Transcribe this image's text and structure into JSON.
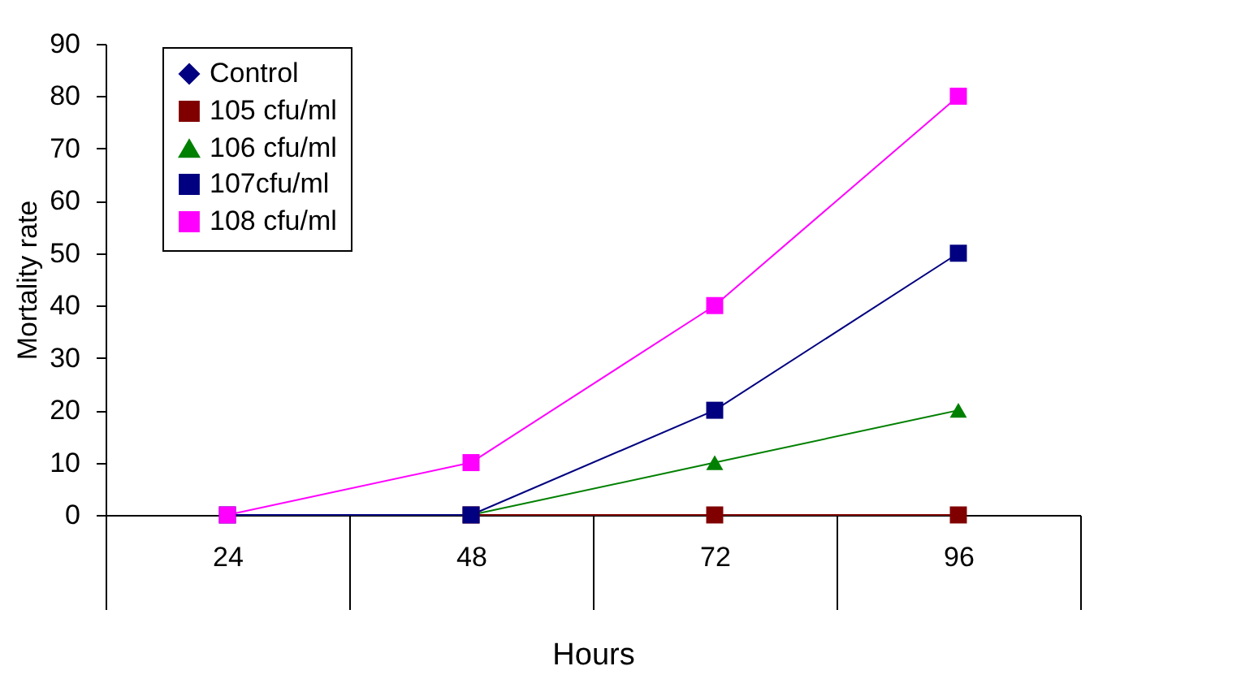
{
  "chart_data": {
    "type": "line",
    "xlabel": "Hours",
    "ylabel": "Mortality rate",
    "categories": [
      "24",
      "48",
      "72",
      "96"
    ],
    "series": [
      {
        "name": "Control",
        "color": "#000080",
        "marker": "diamond",
        "values": [
          null,
          null,
          null,
          null
        ]
      },
      {
        "name": "105 cfu/ml",
        "color": "#800000",
        "marker": "square",
        "values": [
          null,
          0,
          0,
          0
        ]
      },
      {
        "name": "106 cfu/ml",
        "color": "#008000",
        "marker": "triangle",
        "values": [
          0,
          0,
          10,
          20
        ]
      },
      {
        "name": "107cfu/ml",
        "color": "#000080",
        "marker": "square",
        "values": [
          0,
          0,
          20,
          50
        ]
      },
      {
        "name": "108 cfu/ml",
        "color": "#ff00ff",
        "marker": "square",
        "values": [
          0,
          10,
          40,
          80
        ]
      }
    ],
    "ylim": [
      0,
      90
    ],
    "yticks": [
      0,
      10,
      20,
      30,
      40,
      50,
      60,
      70,
      80,
      90
    ],
    "grid": false,
    "legend": "top left",
    "line_style": "solid"
  }
}
